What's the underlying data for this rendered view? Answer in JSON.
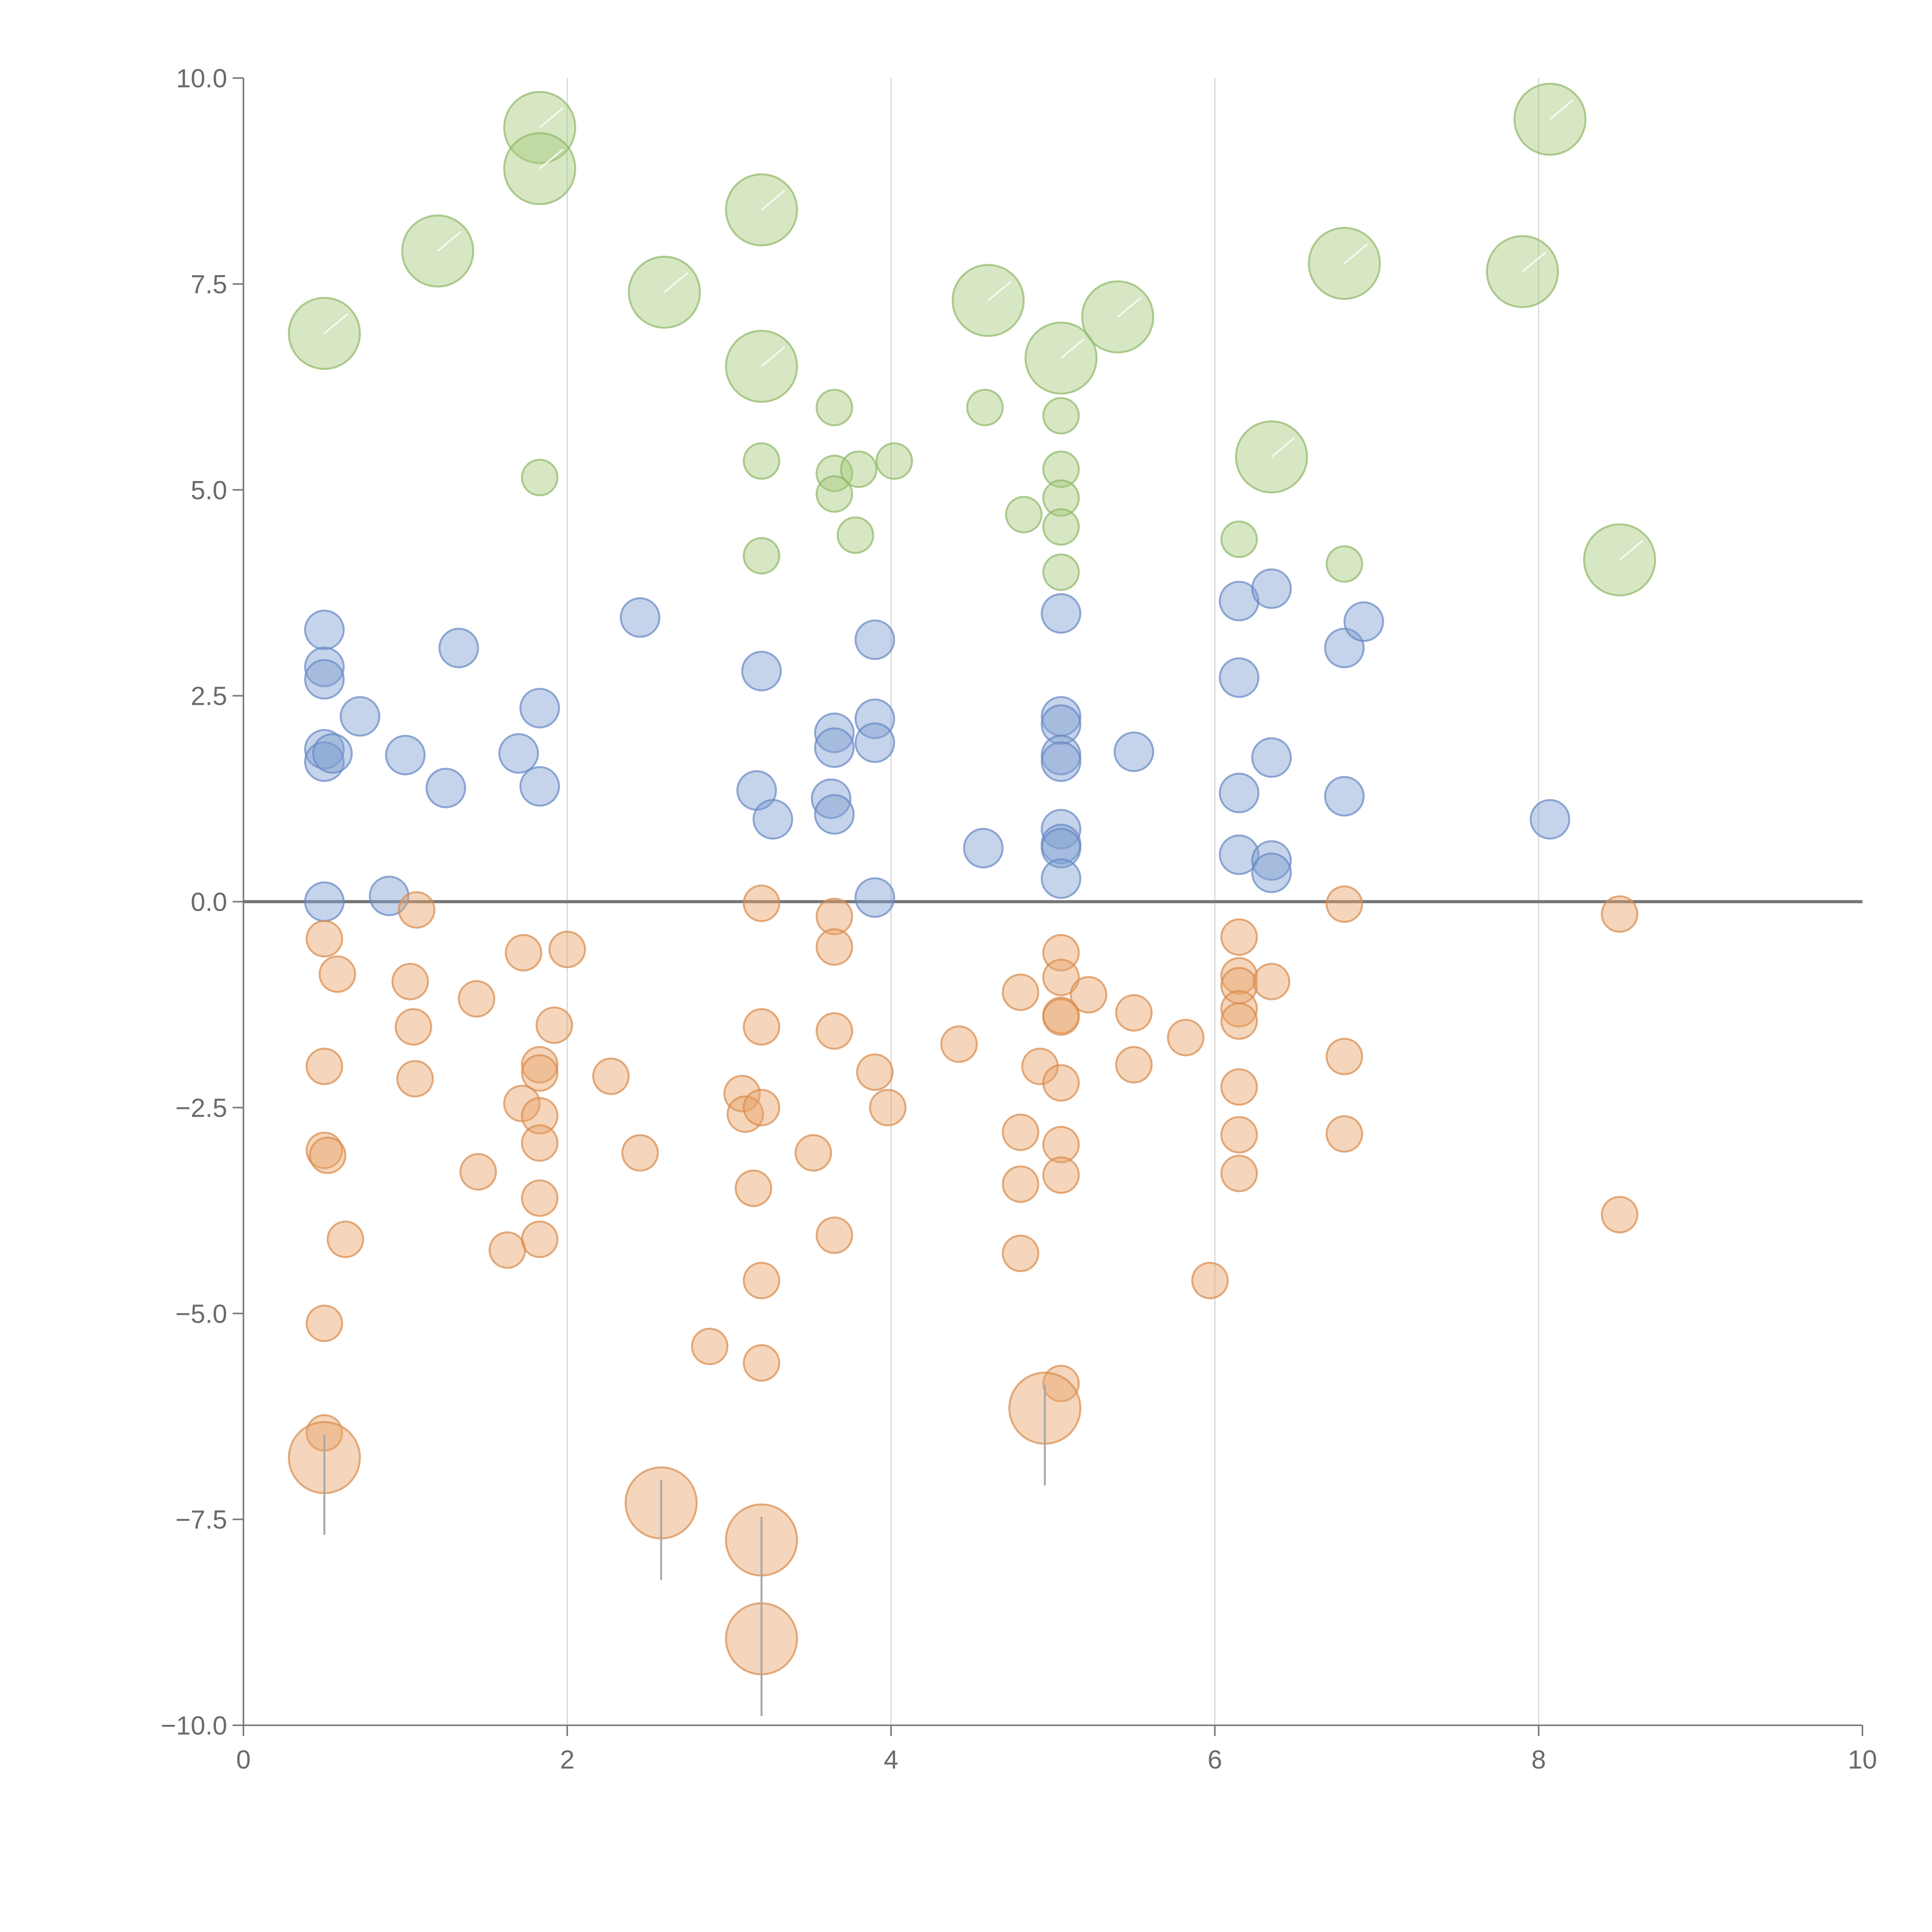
{
  "chart_data": {
    "type": "scatter",
    "title": "",
    "xlabel": "",
    "ylabel": "",
    "xlim": [
      0,
      10
    ],
    "ylim": [
      -10,
      10
    ],
    "xticks": [
      0,
      2,
      4,
      6,
      8,
      10
    ],
    "xtick_labels": [
      "0",
      "2",
      "4",
      "6",
      "8",
      "10"
    ],
    "yticks": [
      -10,
      -7.5,
      -5,
      -2.5,
      0,
      2.5,
      5,
      7.5,
      10
    ],
    "ytick_labels": [
      "−10.0",
      "−7.5",
      "−5.0",
      "−2.5",
      "0.0",
      "2.5",
      "5.0",
      "7.5",
      "10.0"
    ],
    "vertical_gridlines_at": [
      2,
      4,
      6,
      8
    ],
    "reference_line_y": 0,
    "colors": {
      "green": "#a7c97c",
      "green_stroke": "#8fb866",
      "blue": "#7f9fd1",
      "blue_stroke": "#6688c4",
      "orange": "#e9a36b",
      "orange_stroke": "#d98a4c",
      "axis": "#7a7a7a",
      "grid": "#d6d6d6"
    },
    "series": [
      {
        "name": "green",
        "color": "#a7c97c",
        "points": [
          [
            0.5,
            6.9,
            "L"
          ],
          [
            1.2,
            7.9,
            "L"
          ],
          [
            1.83,
            9.4,
            "L"
          ],
          [
            1.83,
            8.9,
            "L"
          ],
          [
            2.6,
            7.4,
            "L"
          ],
          [
            3.2,
            8.4,
            "L"
          ],
          [
            3.2,
            6.5,
            "L"
          ],
          [
            4.6,
            7.3,
            "L"
          ],
          [
            5.05,
            6.6,
            "L"
          ],
          [
            5.4,
            7.1,
            "L"
          ],
          [
            6.35,
            5.4,
            "L"
          ],
          [
            6.8,
            7.75,
            "L"
          ],
          [
            7.9,
            7.65,
            "L"
          ],
          [
            8.07,
            9.5,
            "L"
          ],
          [
            8.5,
            4.15,
            "L"
          ],
          [
            1.83,
            5.15,
            "S"
          ],
          [
            3.2,
            5.35,
            "S"
          ],
          [
            3.2,
            4.2,
            "S"
          ],
          [
            3.65,
            6.0,
            "S"
          ],
          [
            3.65,
            5.2,
            "S"
          ],
          [
            3.65,
            4.95,
            "S"
          ],
          [
            3.8,
            5.25,
            "S"
          ],
          [
            3.78,
            4.45,
            "S"
          ],
          [
            4.02,
            5.35,
            "S"
          ],
          [
            4.58,
            6.0,
            "S"
          ],
          [
            4.82,
            4.7,
            "S"
          ],
          [
            5.05,
            5.9,
            "S"
          ],
          [
            5.05,
            5.25,
            "S"
          ],
          [
            5.05,
            4.9,
            "S"
          ],
          [
            5.05,
            4.55,
            "S"
          ],
          [
            5.05,
            4.0,
            "S"
          ],
          [
            6.15,
            4.4,
            "S"
          ],
          [
            6.8,
            4.1,
            "S"
          ]
        ]
      },
      {
        "name": "blue",
        "color": "#7f9fd1",
        "points": [
          [
            0.5,
            3.3
          ],
          [
            0.5,
            2.85
          ],
          [
            0.5,
            2.7
          ],
          [
            0.5,
            1.85
          ],
          [
            0.5,
            1.7
          ],
          [
            0.55,
            1.8
          ],
          [
            0.5,
            0.0
          ],
          [
            0.72,
            2.25
          ],
          [
            0.9,
            0.07
          ],
          [
            1.0,
            1.78
          ],
          [
            1.25,
            1.38
          ],
          [
            1.33,
            3.08
          ],
          [
            1.7,
            1.8
          ],
          [
            1.83,
            2.35
          ],
          [
            1.83,
            1.4
          ],
          [
            2.45,
            3.45
          ],
          [
            3.2,
            2.8
          ],
          [
            3.17,
            1.35
          ],
          [
            3.27,
            1.0
          ],
          [
            3.63,
            1.25
          ],
          [
            3.65,
            2.05
          ],
          [
            3.65,
            1.87
          ],
          [
            3.65,
            1.06
          ],
          [
            3.9,
            3.18
          ],
          [
            3.9,
            2.22
          ],
          [
            3.9,
            1.93
          ],
          [
            3.9,
            0.05
          ],
          [
            4.57,
            0.65
          ],
          [
            5.05,
            3.5
          ],
          [
            5.05,
            2.25
          ],
          [
            5.05,
            2.15
          ],
          [
            5.05,
            1.78
          ],
          [
            5.05,
            1.7
          ],
          [
            5.05,
            0.88
          ],
          [
            5.05,
            0.7
          ],
          [
            5.05,
            0.65
          ],
          [
            5.05,
            0.28
          ],
          [
            5.5,
            1.82
          ],
          [
            6.15,
            3.65
          ],
          [
            6.15,
            2.72
          ],
          [
            6.15,
            1.32
          ],
          [
            6.15,
            0.57
          ],
          [
            6.35,
            3.8
          ],
          [
            6.35,
            1.75
          ],
          [
            6.35,
            0.5
          ],
          [
            6.35,
            0.35
          ],
          [
            6.8,
            3.08
          ],
          [
            6.8,
            1.28
          ],
          [
            6.92,
            3.4
          ],
          [
            8.07,
            1.0
          ]
        ]
      },
      {
        "name": "orange",
        "color": "#e9a36b",
        "points": [
          [
            0.5,
            -0.45,
            "S"
          ],
          [
            0.58,
            -0.88,
            "S"
          ],
          [
            0.5,
            -2.0,
            "S"
          ],
          [
            0.5,
            -3.02,
            "S"
          ],
          [
            0.52,
            -3.08,
            "S"
          ],
          [
            0.63,
            -4.1,
            "S"
          ],
          [
            0.5,
            -5.12,
            "S"
          ],
          [
            0.5,
            -6.45,
            "S"
          ],
          [
            1.07,
            -0.1,
            "S"
          ],
          [
            1.03,
            -0.97,
            "S"
          ],
          [
            1.05,
            -1.52,
            "S"
          ],
          [
            1.06,
            -2.15,
            "S"
          ],
          [
            1.44,
            -1.18,
            "S"
          ],
          [
            1.45,
            -3.28,
            "S"
          ],
          [
            1.63,
            -4.23,
            "S"
          ],
          [
            1.73,
            -0.62,
            "S"
          ],
          [
            1.72,
            -2.45,
            "S"
          ],
          [
            1.83,
            -1.98,
            "S"
          ],
          [
            1.83,
            -2.08,
            "S"
          ],
          [
            1.83,
            -2.6,
            "S"
          ],
          [
            1.83,
            -2.93,
            "S"
          ],
          [
            1.83,
            -3.6,
            "S"
          ],
          [
            1.83,
            -4.1,
            "S"
          ],
          [
            1.92,
            -1.5,
            "S"
          ],
          [
            2.0,
            -0.58,
            "S"
          ],
          [
            2.27,
            -2.12,
            "S"
          ],
          [
            2.45,
            -3.05,
            "S"
          ],
          [
            2.88,
            -5.4,
            "S"
          ],
          [
            3.08,
            -2.33,
            "S"
          ],
          [
            3.1,
            -2.58,
            "S"
          ],
          [
            3.2,
            -0.02,
            "S"
          ],
          [
            3.2,
            -1.52,
            "S"
          ],
          [
            3.2,
            -2.5,
            "S"
          ],
          [
            3.15,
            -3.48,
            "S"
          ],
          [
            3.2,
            -4.6,
            "S"
          ],
          [
            3.2,
            -5.6,
            "S"
          ],
          [
            3.52,
            -3.05,
            "S"
          ],
          [
            3.65,
            -0.18,
            "S"
          ],
          [
            3.65,
            -0.55,
            "S"
          ],
          [
            3.65,
            -1.57,
            "S"
          ],
          [
            3.65,
            -4.05,
            "S"
          ],
          [
            3.9,
            -2.07,
            "S"
          ],
          [
            3.98,
            -2.5,
            "S"
          ],
          [
            4.42,
            -1.73,
            "S"
          ],
          [
            4.8,
            -1.1,
            "S"
          ],
          [
            4.8,
            -2.8,
            "S"
          ],
          [
            4.8,
            -3.43,
            "S"
          ],
          [
            4.8,
            -4.27,
            "S"
          ],
          [
            4.92,
            -2.0,
            "S"
          ],
          [
            5.05,
            -0.62,
            "S"
          ],
          [
            5.05,
            -0.92,
            "S"
          ],
          [
            5.05,
            -1.38,
            "S"
          ],
          [
            5.05,
            -1.4,
            "S"
          ],
          [
            5.05,
            -2.2,
            "S"
          ],
          [
            5.05,
            -2.95,
            "S"
          ],
          [
            5.05,
            -3.32,
            "S"
          ],
          [
            5.05,
            -5.85,
            "S"
          ],
          [
            5.22,
            -1.13,
            "S"
          ],
          [
            5.5,
            -1.35,
            "S"
          ],
          [
            5.5,
            -1.98,
            "S"
          ],
          [
            5.82,
            -1.65,
            "S"
          ],
          [
            5.97,
            -4.6,
            "S"
          ],
          [
            6.15,
            -0.43,
            "S"
          ],
          [
            6.15,
            -0.9,
            "S"
          ],
          [
            6.15,
            -1.02,
            "S"
          ],
          [
            6.15,
            -1.3,
            "S"
          ],
          [
            6.15,
            -1.45,
            "S"
          ],
          [
            6.15,
            -2.25,
            "S"
          ],
          [
            6.15,
            -2.83,
            "S"
          ],
          [
            6.15,
            -3.3,
            "S"
          ],
          [
            6.35,
            -0.97,
            "S"
          ],
          [
            6.8,
            -0.03,
            "S"
          ],
          [
            6.8,
            -1.88,
            "S"
          ],
          [
            6.8,
            -2.82,
            "S"
          ],
          [
            8.5,
            -0.15,
            "S"
          ],
          [
            8.5,
            -3.8,
            "S"
          ],
          [
            0.5,
            -6.75,
            "L"
          ],
          [
            2.58,
            -7.3,
            "L"
          ],
          [
            3.2,
            -7.75,
            "L"
          ],
          [
            3.2,
            -8.95,
            "L"
          ],
          [
            4.95,
            -6.15,
            "L"
          ]
        ]
      }
    ]
  }
}
